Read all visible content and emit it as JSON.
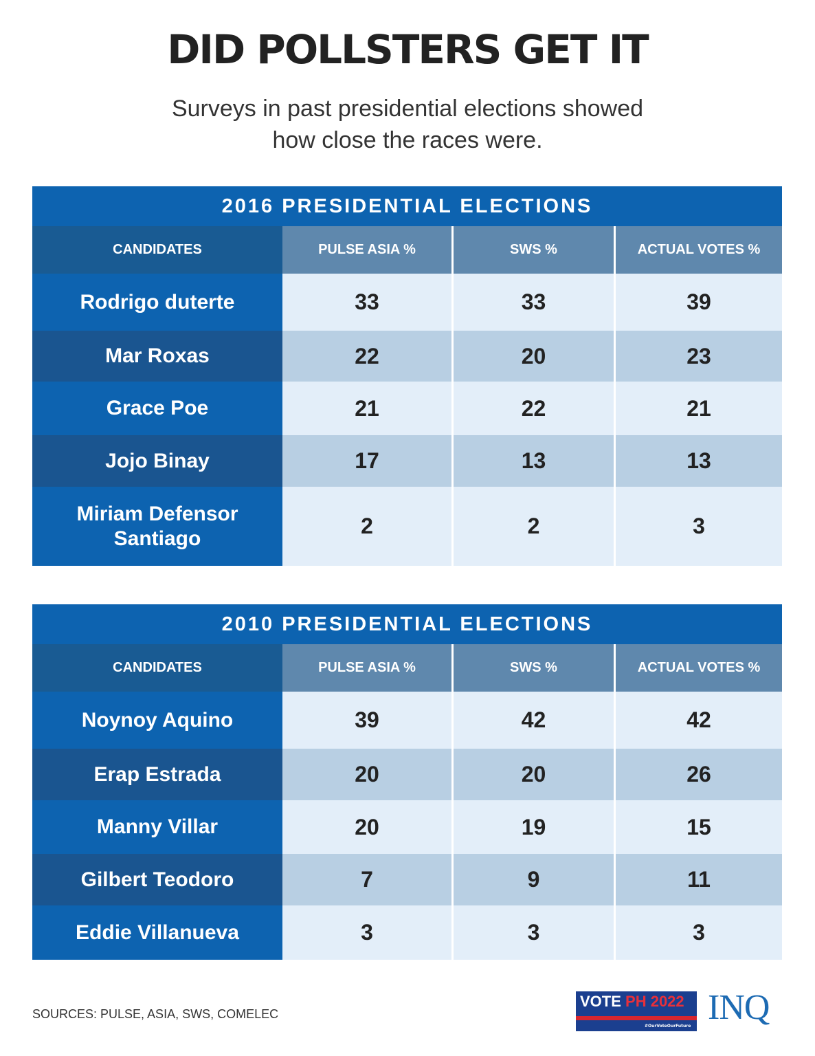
{
  "title": "DID POLLSTERS GET IT",
  "subtitle_line1": "Surveys in past presidential elections showed",
  "subtitle_line2": "how close the races were.",
  "colors": {
    "title_bar": "#0d63b0",
    "header_candidates": "#195b93",
    "header_sources": "#5f88ad",
    "row_light": "#e3eef9",
    "row_mid": "#b8cfe3"
  },
  "chart_data": [
    {
      "type": "table",
      "title": "2016 PRESIDENTIAL ELECTIONS",
      "columns": [
        "CANDIDATES",
        "PULSE ASIA %",
        "SWS %",
        "ACTUAL VOTES %"
      ],
      "rows": [
        [
          "Rodrigo duterte",
          "33",
          "33",
          "39"
        ],
        [
          "Mar Roxas",
          "22",
          "20",
          "23"
        ],
        [
          "Grace Poe",
          "21",
          "22",
          "21"
        ],
        [
          "Jojo Binay",
          "17",
          "13",
          "13"
        ],
        [
          "Miriam Defensor Santiago",
          "2",
          "2",
          "3"
        ]
      ]
    },
    {
      "type": "table",
      "title": "2010 PRESIDENTIAL ELECTIONS",
      "columns": [
        "CANDIDATES",
        "PULSE ASIA %",
        "SWS %",
        "ACTUAL VOTES %"
      ],
      "rows": [
        [
          "Noynoy Aquino",
          "39",
          "42",
          "42"
        ],
        [
          "Erap Estrada",
          "20",
          "20",
          "26"
        ],
        [
          "Manny Villar",
          "20",
          "19",
          "15"
        ],
        [
          "Gilbert Teodoro",
          "7",
          "9",
          "11"
        ],
        [
          "Eddie Villanueva",
          "3",
          "3",
          "3"
        ]
      ]
    }
  ],
  "sources": "SOURCES: PULSE, ASIA, SWS, COMELEC",
  "logos": {
    "vote_white": "VOTE",
    "vote_red": "PH 2022",
    "hashtag": "#OurVoteOurFuture",
    "inq": "INQ"
  }
}
